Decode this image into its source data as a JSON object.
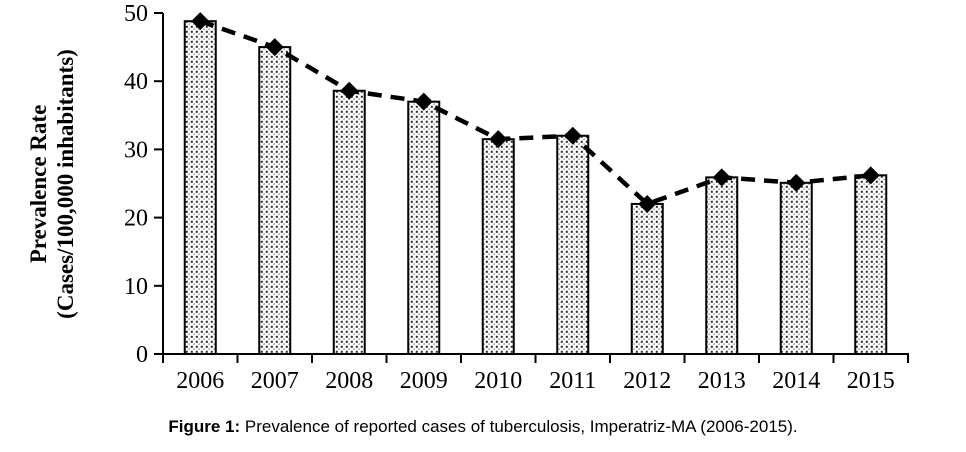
{
  "figure": {
    "caption_prefix": "Figure 1:",
    "caption_text": " Prevalence of reported cases of tuberculosis, Imperatriz-MA (2006-2015)."
  },
  "chart_data": {
    "type": "bar",
    "title": "",
    "xlabel": "",
    "ylabel_line1": "Prevalence Rate",
    "ylabel_line2": "(Cases/100,000 inhabitants)",
    "categories": [
      "2006",
      "2007",
      "2008",
      "2009",
      "2010",
      "2011",
      "2012",
      "2013",
      "2014",
      "2015"
    ],
    "series": [
      {
        "name": "Prevalence rate (stippled bars)",
        "type": "bar",
        "values": [
          48.8,
          45.0,
          38.6,
          37.0,
          31.5,
          32.0,
          22.0,
          25.9,
          25.1,
          26.2
        ]
      },
      {
        "name": "Prevalence rate (dashed trend line, diamond markers)",
        "type": "line",
        "values": [
          48.8,
          45.0,
          38.6,
          37.0,
          31.5,
          32.0,
          22.0,
          25.9,
          25.1,
          26.2
        ]
      }
    ],
    "ylim": [
      0,
      50
    ],
    "yticks": [
      0,
      10,
      20,
      30,
      40,
      50
    ],
    "grid": false,
    "legend_position": "none",
    "colors": {
      "background": "#ffffff",
      "axis": "#000000",
      "bar_border": "#000000",
      "bar_fill_base": "#ffffff",
      "bar_fill_dot": "#2a2a2a",
      "line": "#000000",
      "marker": "#000000",
      "text": "#000000"
    }
  }
}
